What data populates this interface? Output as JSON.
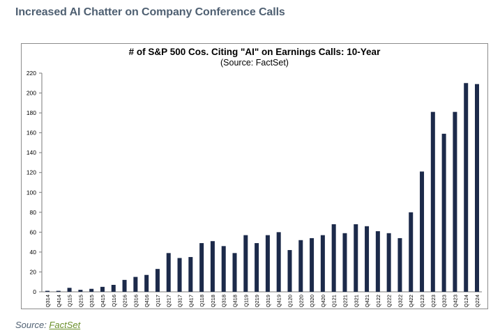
{
  "page": {
    "heading": "Increased AI Chatter on Company Conference Calls",
    "source_prefix": "Source: ",
    "source_link": "FactSet"
  },
  "colors": {
    "bar": "#1c2a4a",
    "heading": "#4f6072",
    "link": "#6a8f2a",
    "frame": "#8c8c8c"
  },
  "chart_data": {
    "type": "bar",
    "title": "# of S&P 500 Cos. Citing \"AI\" on Earnings Calls: 10-Year",
    "subtitle": "(Source: FactSet)",
    "xlabel": "",
    "ylabel": "",
    "ylim": [
      0,
      220
    ],
    "yticks": [
      0,
      20,
      40,
      60,
      80,
      100,
      120,
      140,
      160,
      180,
      200,
      220
    ],
    "grid": false,
    "legend": "none",
    "categories": [
      "Q314",
      "Q414",
      "Q115",
      "Q215",
      "Q315",
      "Q415",
      "Q116",
      "Q216",
      "Q316",
      "Q416",
      "Q117",
      "Q217",
      "Q317",
      "Q417",
      "Q118",
      "Q218",
      "Q318",
      "Q418",
      "Q119",
      "Q219",
      "Q319",
      "Q419",
      "Q120",
      "Q220",
      "Q320",
      "Q420",
      "Q121",
      "Q221",
      "Q321",
      "Q421",
      "Q122",
      "Q222",
      "Q322",
      "Q422",
      "Q123",
      "Q223",
      "Q323",
      "Q423",
      "Q124",
      "Q224"
    ],
    "values": [
      1,
      1,
      4,
      2,
      3,
      5,
      7,
      12,
      15,
      17,
      23,
      39,
      34,
      35,
      49,
      51,
      46,
      39,
      57,
      49,
      57,
      60,
      42,
      52,
      54,
      57,
      68,
      59,
      68,
      66,
      61,
      59,
      54,
      80,
      121,
      181,
      159,
      181,
      210,
      209
    ]
  }
}
